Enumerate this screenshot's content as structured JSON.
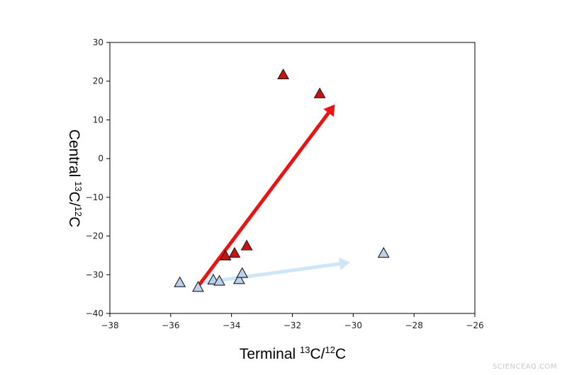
{
  "chart_data": {
    "type": "scatter",
    "title": "",
    "xlabel": {
      "prefix": "Terminal ",
      "sup": "13",
      "mid": "C/",
      "sup2": "12",
      "suffix": "C"
    },
    "ylabel": {
      "prefix": "Central ",
      "sup": "13",
      "mid": "C/",
      "sup2": "12",
      "suffix": "C"
    },
    "xlim": [
      -38,
      -26
    ],
    "ylim": [
      -40,
      30
    ],
    "xticks": [
      -38,
      -36,
      -34,
      -32,
      -30,
      -28,
      -26
    ],
    "yticks": [
      -40,
      -30,
      -20,
      -10,
      0,
      10,
      20,
      30
    ],
    "grid": false,
    "series": [
      {
        "marker": "triangle",
        "color": "#cc1111",
        "points": [
          {
            "x": -32.3,
            "y": 21.7
          },
          {
            "x": -31.1,
            "y": 16.8
          },
          {
            "x": -34.2,
            "y": -25.1
          },
          {
            "x": -33.9,
            "y": -24.4
          },
          {
            "x": -33.5,
            "y": -22.5
          }
        ]
      },
      {
        "marker": "triangle",
        "color": "#bcd2ec",
        "points": [
          {
            "x": -35.7,
            "y": -32.0
          },
          {
            "x": -35.1,
            "y": -33.2
          },
          {
            "x": -34.6,
            "y": -31.3
          },
          {
            "x": -34.4,
            "y": -31.6
          },
          {
            "x": -33.75,
            "y": -31.2
          },
          {
            "x": -33.65,
            "y": -29.6
          },
          {
            "x": -29.0,
            "y": -24.4
          }
        ]
      }
    ],
    "arrows": [
      {
        "color": "#ee1111",
        "from": {
          "x": -35.1,
          "y": -33.0
        },
        "to": {
          "x": -30.6,
          "y": 14.0
        }
      },
      {
        "color": "#cfe6f8",
        "from": {
          "x": -34.9,
          "y": -32.0
        },
        "to": {
          "x": -30.1,
          "y": -26.8
        }
      }
    ]
  },
  "watermark": "SCIENCEAQ.COM"
}
